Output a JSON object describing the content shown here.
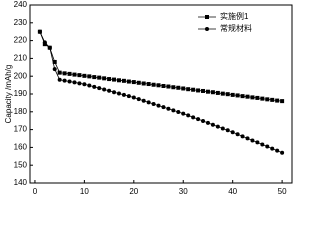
{
  "chart_data": {
    "type": "line",
    "ylabel": "Capacity /mAh/g",
    "x": [
      1,
      2,
      3,
      4,
      5,
      6,
      7,
      8,
      9,
      10,
      11,
      12,
      13,
      14,
      15,
      16,
      17,
      18,
      19,
      20,
      21,
      22,
      23,
      24,
      25,
      26,
      27,
      28,
      29,
      30,
      31,
      32,
      33,
      34,
      35,
      36,
      37,
      38,
      39,
      40,
      41,
      42,
      43,
      44,
      45,
      46,
      47,
      48,
      49,
      50
    ],
    "series": [
      {
        "name": "实施例1",
        "color": "#000000",
        "marker": "square",
        "values": [
          225,
          218,
          216,
          208,
          202,
          201.6,
          201.3,
          200.9,
          200.6,
          200.2,
          199.9,
          199.5,
          199.2,
          198.8,
          198.4,
          198.1,
          197.7,
          197.4,
          197.0,
          196.7,
          196.3,
          195.9,
          195.6,
          195.2,
          194.9,
          194.5,
          194.2,
          193.8,
          193.5,
          193.1,
          192.7,
          192.4,
          192.0,
          191.7,
          191.3,
          191.0,
          190.6,
          190.2,
          189.9,
          189.5,
          189.2,
          188.8,
          188.5,
          188.1,
          187.8,
          187.4,
          187.0,
          186.7,
          186.3,
          186.0
        ]
      },
      {
        "name": "常规材料",
        "color": "#000000",
        "marker": "circle",
        "values": [
          225,
          219,
          216,
          204,
          198,
          197.5,
          197,
          196.5,
          196,
          195.5,
          194.8,
          194,
          193.3,
          192.5,
          191.8,
          191,
          190.3,
          189.5,
          188.8,
          188,
          187.1,
          186.2,
          185.3,
          184.4,
          183.5,
          182.6,
          181.7,
          180.8,
          179.9,
          179,
          178,
          176.9,
          175.9,
          174.8,
          173.8,
          172.7,
          171.7,
          170.6,
          169.6,
          168.5,
          167.4,
          166.2,
          165.1,
          163.9,
          162.8,
          161.6,
          160.5,
          159.3,
          158.2,
          157
        ]
      }
    ],
    "xlim": [
      -1,
      52
    ],
    "xticks": [
      0,
      10,
      20,
      30,
      40,
      50
    ],
    "ylim": [
      140,
      240
    ],
    "yticks": [
      140,
      150,
      160,
      170,
      180,
      190,
      200,
      210,
      220,
      230,
      240
    ],
    "legend": "upper right"
  }
}
